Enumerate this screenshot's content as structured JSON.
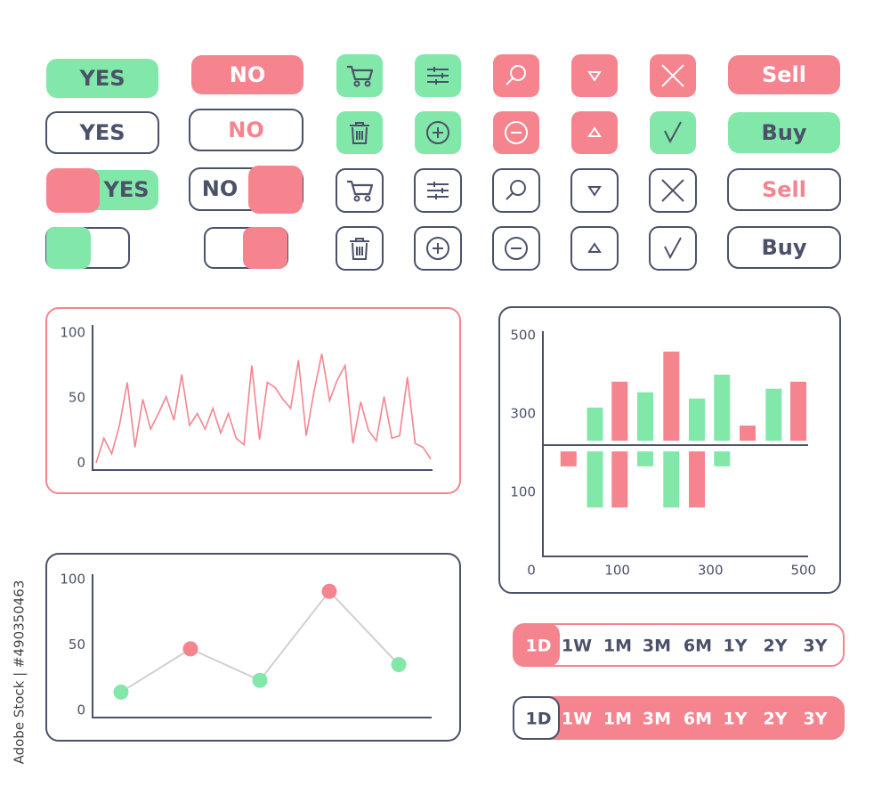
{
  "buttons": [
    "YES",
    "NO",
    "Sell",
    "YES",
    "NO",
    "Buy",
    "Sell",
    "Buy"
  ],
  "toggles": [
    "YES",
    "NO"
  ],
  "range_selectors": [
    [
      "1D",
      "1W",
      "1M",
      "3M",
      "6M",
      "1Y",
      "2Y",
      "3Y"
    ],
    [
      "1D",
      "1W",
      "1M",
      "3M",
      "6M",
      "1Y",
      "2Y",
      "3Y"
    ]
  ],
  "watermark": "Adobe Stock | #490350463",
  "chart_data": [
    {
      "type": "line",
      "color": "#f5848f",
      "values": [
        0,
        19,
        7,
        29,
        62,
        12,
        49,
        26,
        38,
        51,
        33,
        68,
        29,
        38,
        26,
        42,
        23,
        38,
        19,
        14,
        75,
        18,
        62,
        58,
        49,
        42,
        79,
        21,
        55,
        84,
        48,
        64,
        75,
        15,
        47,
        25,
        17,
        51,
        19,
        21,
        66,
        15,
        12,
        3
      ],
      "ylim": [
        0,
        100
      ],
      "yticks": [
        0,
        50,
        100
      ]
    },
    {
      "type": "bar",
      "baseline": 220,
      "x": [
        -5,
        52,
        105,
        160,
        216,
        271,
        325,
        380,
        436,
        489
      ],
      "series": [
        {
          "values": [
            null,
            316,
            382,
            355,
            459,
            339,
            400,
            270,
            364,
            382
          ],
          "colors": [
            null,
            "#82e8a9",
            "#f5848f",
            "#82e8a9",
            "#f5848f",
            "#82e8a9",
            "#82e8a9",
            "#f5848f",
            "#82e8a9",
            "#f5848f"
          ]
        },
        {
          "values": [
            166,
            61,
            61,
            166,
            61,
            61,
            166,
            null,
            null,
            null
          ],
          "colors": [
            "#f5848f",
            "#82e8a9",
            "#f5848f",
            "#82e8a9",
            "#82e8a9",
            "#f5848f",
            "#82e8a9",
            null,
            null,
            null
          ]
        }
      ],
      "origin_label": "0",
      "xlim": [
        -60,
        510
      ],
      "xticks": [
        100,
        300,
        500
      ],
      "ylim": [
        -64,
        511
      ],
      "yticks": [
        100,
        300,
        500
      ]
    },
    {
      "type": "line",
      "markers": true,
      "color": "#d0d0d0",
      "values": [
        14,
        47,
        23,
        91,
        35
      ],
      "point_colors": [
        "#82e8a9",
        "#f5848f",
        "#82e8a9",
        "#f5848f",
        "#82e8a9"
      ],
      "ylim": [
        0,
        100
      ],
      "yticks": [
        0,
        50,
        100
      ]
    }
  ]
}
